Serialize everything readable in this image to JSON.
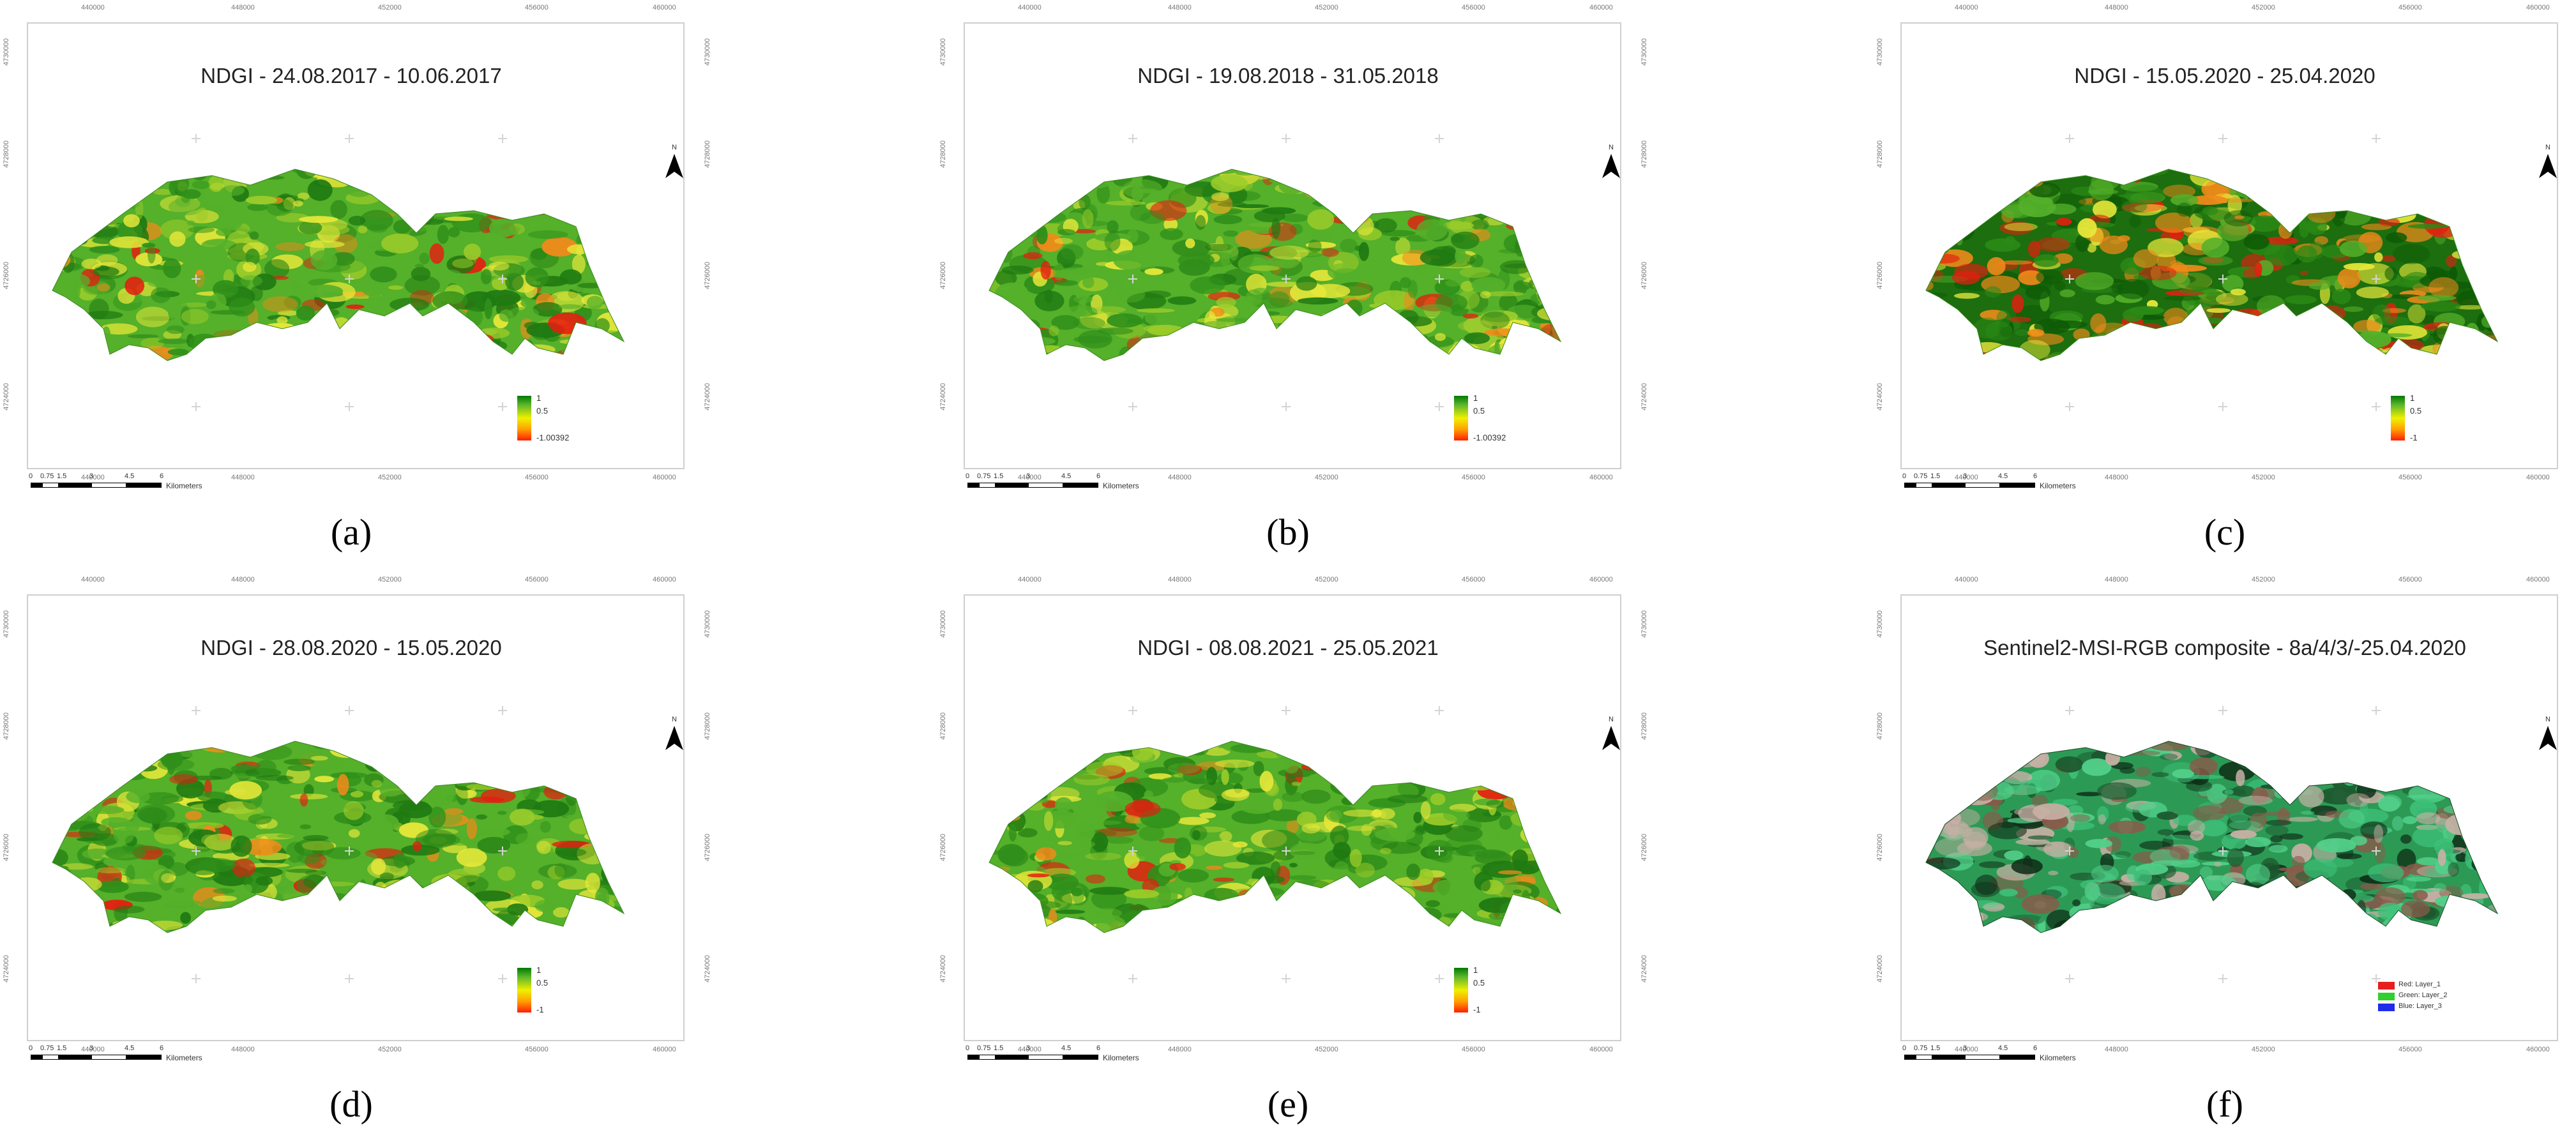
{
  "panels": [
    {
      "caption": "(a)",
      "title": "NDGI - 24.08.2017 - 10.06.2017",
      "legend": [
        "1",
        "0.5",
        "-1.00392"
      ],
      "variant": "ndgi-a"
    },
    {
      "caption": "(b)",
      "title": "NDGI - 19.08.2018 - 31.05.2018",
      "legend": [
        "1",
        "0.5",
        "-1.00392"
      ],
      "variant": "ndgi-b"
    },
    {
      "caption": "(c)",
      "title": "NDGI - 15.05.2020 - 25.04.2020",
      "legend": [
        "1",
        "0.5",
        "-1"
      ],
      "variant": "ndgi-c"
    },
    {
      "caption": "(d)",
      "title": "NDGI - 28.08.2020 - 15.05.2020",
      "legend": [
        "1",
        "0.5",
        "-1"
      ],
      "variant": "ndgi-d"
    },
    {
      "caption": "(e)",
      "title": "NDGI - 08.08.2021 - 25.05.2021",
      "legend": [
        "1",
        "0.5",
        "-1"
      ],
      "variant": "ndgi-e"
    },
    {
      "caption": "(f)",
      "title": "Sentinel2-MSI-RGB composite - 8a/4/3/-25.04.2020",
      "rgb_legend": [
        "Red: Layer_1",
        "Green: Layer_2",
        "Blue: Layer_3"
      ],
      "variant": "rgb"
    }
  ],
  "top_ticks": [
    "440000",
    "448000",
    "452000",
    "456000",
    "460000"
  ],
  "bottom_ticks": [
    "440000",
    "448000",
    "452000",
    "456000",
    "460000"
  ],
  "left_ticks": [
    "4730000",
    "4728000",
    "4726000",
    "4724000"
  ],
  "right_ticks": [
    "4730000",
    "4728000",
    "4726000",
    "4724000"
  ],
  "scale_numbers": [
    "0",
    "0.75",
    "1.5",
    "3",
    "4.5",
    "6"
  ],
  "scale_unit": "Kilometers",
  "north_label": "N",
  "colors": {
    "dark_green": "#1f7a12",
    "green": "#55b02a",
    "yellow": "#e8e83a",
    "orange": "#f08a1a",
    "red": "#e51e10"
  }
}
